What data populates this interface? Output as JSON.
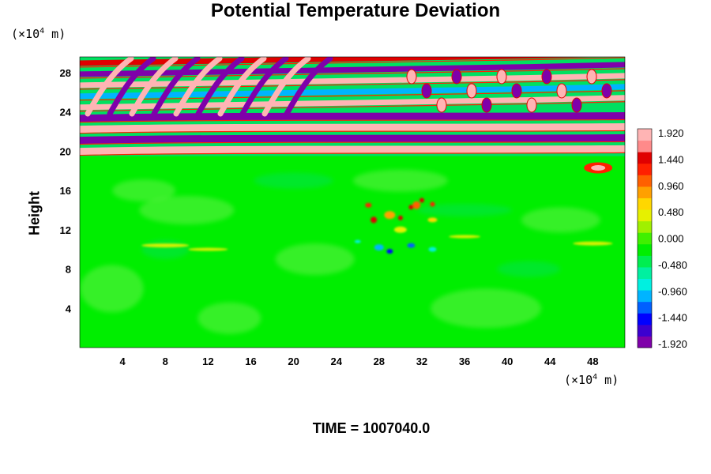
{
  "chart_data": {
    "type": "heatmap",
    "title": "Potential Temperature Deviation",
    "ylabel": "Height",
    "x_unit_prefix": "(×10",
    "x_unit_exp": "4",
    "x_unit_suffix": " m)",
    "y_unit_prefix": "(×10",
    "y_unit_exp": "4",
    "y_unit_suffix": " m)",
    "xlim": [
      0,
      51
    ],
    "ylim": [
      0,
      29.6
    ],
    "xticks": [
      4,
      8,
      12,
      16,
      20,
      24,
      28,
      32,
      36,
      40,
      44,
      48
    ],
    "yticks": [
      4,
      8,
      12,
      16,
      20,
      24,
      28
    ],
    "colorbar": {
      "min": -1.92,
      "max": 1.92,
      "labels": [
        "1.920",
        "1.440",
        "0.960",
        "0.480",
        "0.000",
        "-0.480",
        "-0.960",
        "-1.440",
        "-1.920"
      ],
      "label_values": [
        1.92,
        1.44,
        0.96,
        0.48,
        0.0,
        -0.48,
        -0.96,
        -1.44,
        -1.92
      ],
      "colors": [
        "#7f00aa",
        "#3c00d0",
        "#0000ff",
        "#0060ff",
        "#00b4ff",
        "#00f0e0",
        "#00f0a0",
        "#00ee50",
        "#00ee00",
        "#40f000",
        "#a0f000",
        "#e6f000",
        "#ffd700",
        "#ffa000",
        "#ff6000",
        "#ff2000",
        "#e00000",
        "#ff8a8a",
        "#ffb4b4"
      ],
      "legend_placement": "right"
    },
    "field_description_levels": {
      "stratosphere_band_bottom": 19.5,
      "stratosphere_band_top": 29.6,
      "convective_cluster_center_x": 29,
      "convective_cluster_center_y": 12
    },
    "grid": false
  },
  "footer": {
    "time_label": "TIME = 1007040.0"
  }
}
